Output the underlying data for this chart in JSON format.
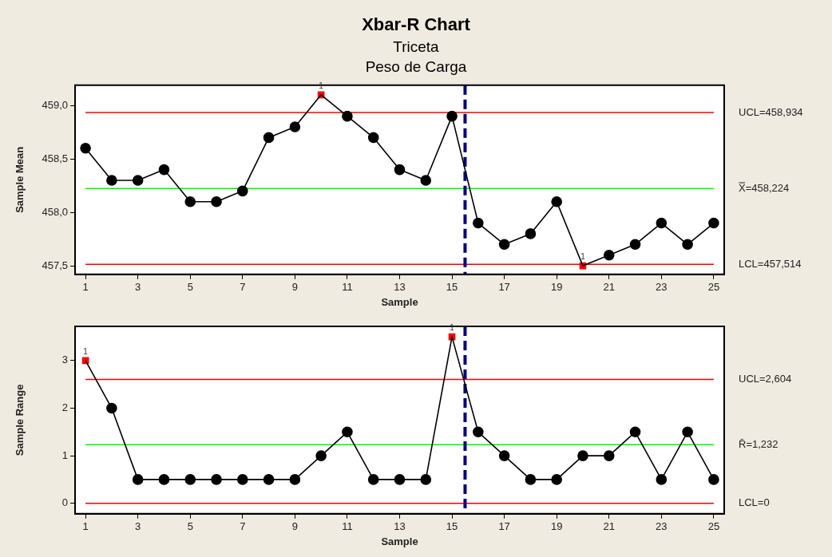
{
  "chart_data": [
    {
      "type": "line",
      "title": "Xbar-R Chart",
      "subtitle": "Triceta\nPeso de Carga",
      "xlabel": "Sample",
      "ylabel": "Sample Mean",
      "x": [
        1,
        2,
        3,
        4,
        5,
        6,
        7,
        8,
        9,
        10,
        11,
        12,
        13,
        14,
        15,
        16,
        17,
        18,
        19,
        20,
        21,
        22,
        23,
        24,
        25
      ],
      "series": [
        {
          "marker": "none",
          "color": "#000000",
          "values": [
            458.6,
            458.3,
            458.3,
            458.4,
            458.1,
            458.1,
            458.2,
            458.7,
            458.8,
            459.1,
            458.9,
            458.7,
            458.4,
            458.3,
            458.9,
            457.9,
            457.7,
            457.8,
            458.1,
            457.5,
            457.6,
            457.7,
            457.9,
            457.7,
            457.9
          ]
        },
        {
          "type": "scatter",
          "marker": "circle",
          "color": "#000000",
          "x": [
            1,
            2,
            3,
            4,
            5,
            6,
            7,
            8,
            9,
            11,
            12,
            13,
            14,
            15,
            16,
            17,
            18,
            19,
            21,
            22,
            23,
            24,
            25
          ],
          "values": [
            458.6,
            458.3,
            458.3,
            458.4,
            458.1,
            458.1,
            458.2,
            458.7,
            458.8,
            458.9,
            458.7,
            458.4,
            458.3,
            458.9,
            457.9,
            457.7,
            457.8,
            458.1,
            457.6,
            457.7,
            457.9,
            457.7,
            457.9
          ]
        },
        {
          "type": "scatter",
          "marker": "square",
          "color": "#ff0000",
          "x": [
            10,
            20
          ],
          "values": [
            459.1,
            457.5
          ]
        }
      ],
      "xlim": [
        0.6,
        25.4
      ],
      "xticks": [
        1,
        3,
        5,
        7,
        9,
        11,
        13,
        15,
        17,
        19,
        21,
        23,
        25
      ],
      "ylim": [
        457.42,
        459.19
      ],
      "yticks": [
        {
          "value": 457.5,
          "label": "457,5"
        },
        {
          "value": 458,
          "label": "458,0"
        },
        {
          "value": 458.5,
          "label": "458,5"
        },
        {
          "value": 459,
          "label": "459,0"
        }
      ],
      "ref_lines": [
        {
          "axis": "y",
          "value": 458.934,
          "label": "UCL=458,934",
          "color": "#ff0000"
        },
        {
          "axis": "y",
          "value": 458.224,
          "label": "X̿=458,224",
          "color": "#00ff00"
        },
        {
          "axis": "y",
          "value": 457.514,
          "label": "LCL=457,514",
          "color": "#ff0000"
        },
        {
          "axis": "x",
          "value": 15.5,
          "color": "#000080",
          "line_style": "dashed"
        }
      ],
      "annotations": [
        {
          "text": "1",
          "x": 10,
          "y": 459.1
        },
        {
          "text": "1",
          "x": 20,
          "y": 457.5
        }
      ]
    },
    {
      "type": "line",
      "xlabel": "Sample",
      "ylabel": "Sample Range",
      "x": [
        1,
        2,
        3,
        4,
        5,
        6,
        7,
        8,
        9,
        10,
        11,
        12,
        13,
        14,
        15,
        16,
        17,
        18,
        19,
        20,
        21,
        22,
        23,
        24,
        25
      ],
      "series": [
        {
          "marker": "none",
          "color": "#000000",
          "values": [
            3,
            2,
            0.5,
            0.5,
            0.5,
            0.5,
            0.5,
            0.5,
            0.5,
            1,
            1.5,
            0.5,
            0.5,
            0.5,
            3.5,
            1.5,
            1,
            0.5,
            0.5,
            1,
            1,
            1.5,
            0.5,
            1.5,
            0.5
          ]
        },
        {
          "type": "scatter",
          "marker": "circle",
          "color": "#000000",
          "x": [
            2,
            3,
            4,
            5,
            6,
            7,
            8,
            9,
            10,
            11,
            12,
            13,
            14,
            16,
            17,
            18,
            19,
            20,
            21,
            22,
            23,
            24,
            25
          ],
          "values": [
            2,
            0.5,
            0.5,
            0.5,
            0.5,
            0.5,
            0.5,
            0.5,
            1,
            1.5,
            0.5,
            0.5,
            0.5,
            1.5,
            1,
            0.5,
            0.5,
            1,
            1,
            1.5,
            0.5,
            1.5,
            0.5
          ]
        },
        {
          "type": "scatter",
          "marker": "square",
          "color": "#ff0000",
          "x": [
            1,
            15
          ],
          "values": [
            3,
            3.5
          ]
        }
      ],
      "xlim": [
        0.6,
        25.4
      ],
      "xticks": [
        1,
        3,
        5,
        7,
        9,
        11,
        13,
        15,
        17,
        19,
        21,
        23,
        25
      ],
      "ylim": [
        -0.22,
        3.72
      ],
      "yticks": [
        0,
        1,
        2,
        3
      ],
      "ref_lines": [
        {
          "axis": "y",
          "value": 2.604,
          "label": "UCL=2,604",
          "color": "#ff0000"
        },
        {
          "axis": "y",
          "value": 1.232,
          "label": "R̄=1,232",
          "color": "#00ff00"
        },
        {
          "axis": "y",
          "value": 0,
          "label": "LCL=0",
          "color": "#ff0000"
        },
        {
          "axis": "x",
          "value": 15.5,
          "color": "#000080",
          "line_style": "dashed"
        }
      ],
      "annotations": [
        {
          "text": "1",
          "x": 1,
          "y": 3
        },
        {
          "text": "1",
          "x": 15,
          "y": 3.5
        }
      ]
    }
  ]
}
